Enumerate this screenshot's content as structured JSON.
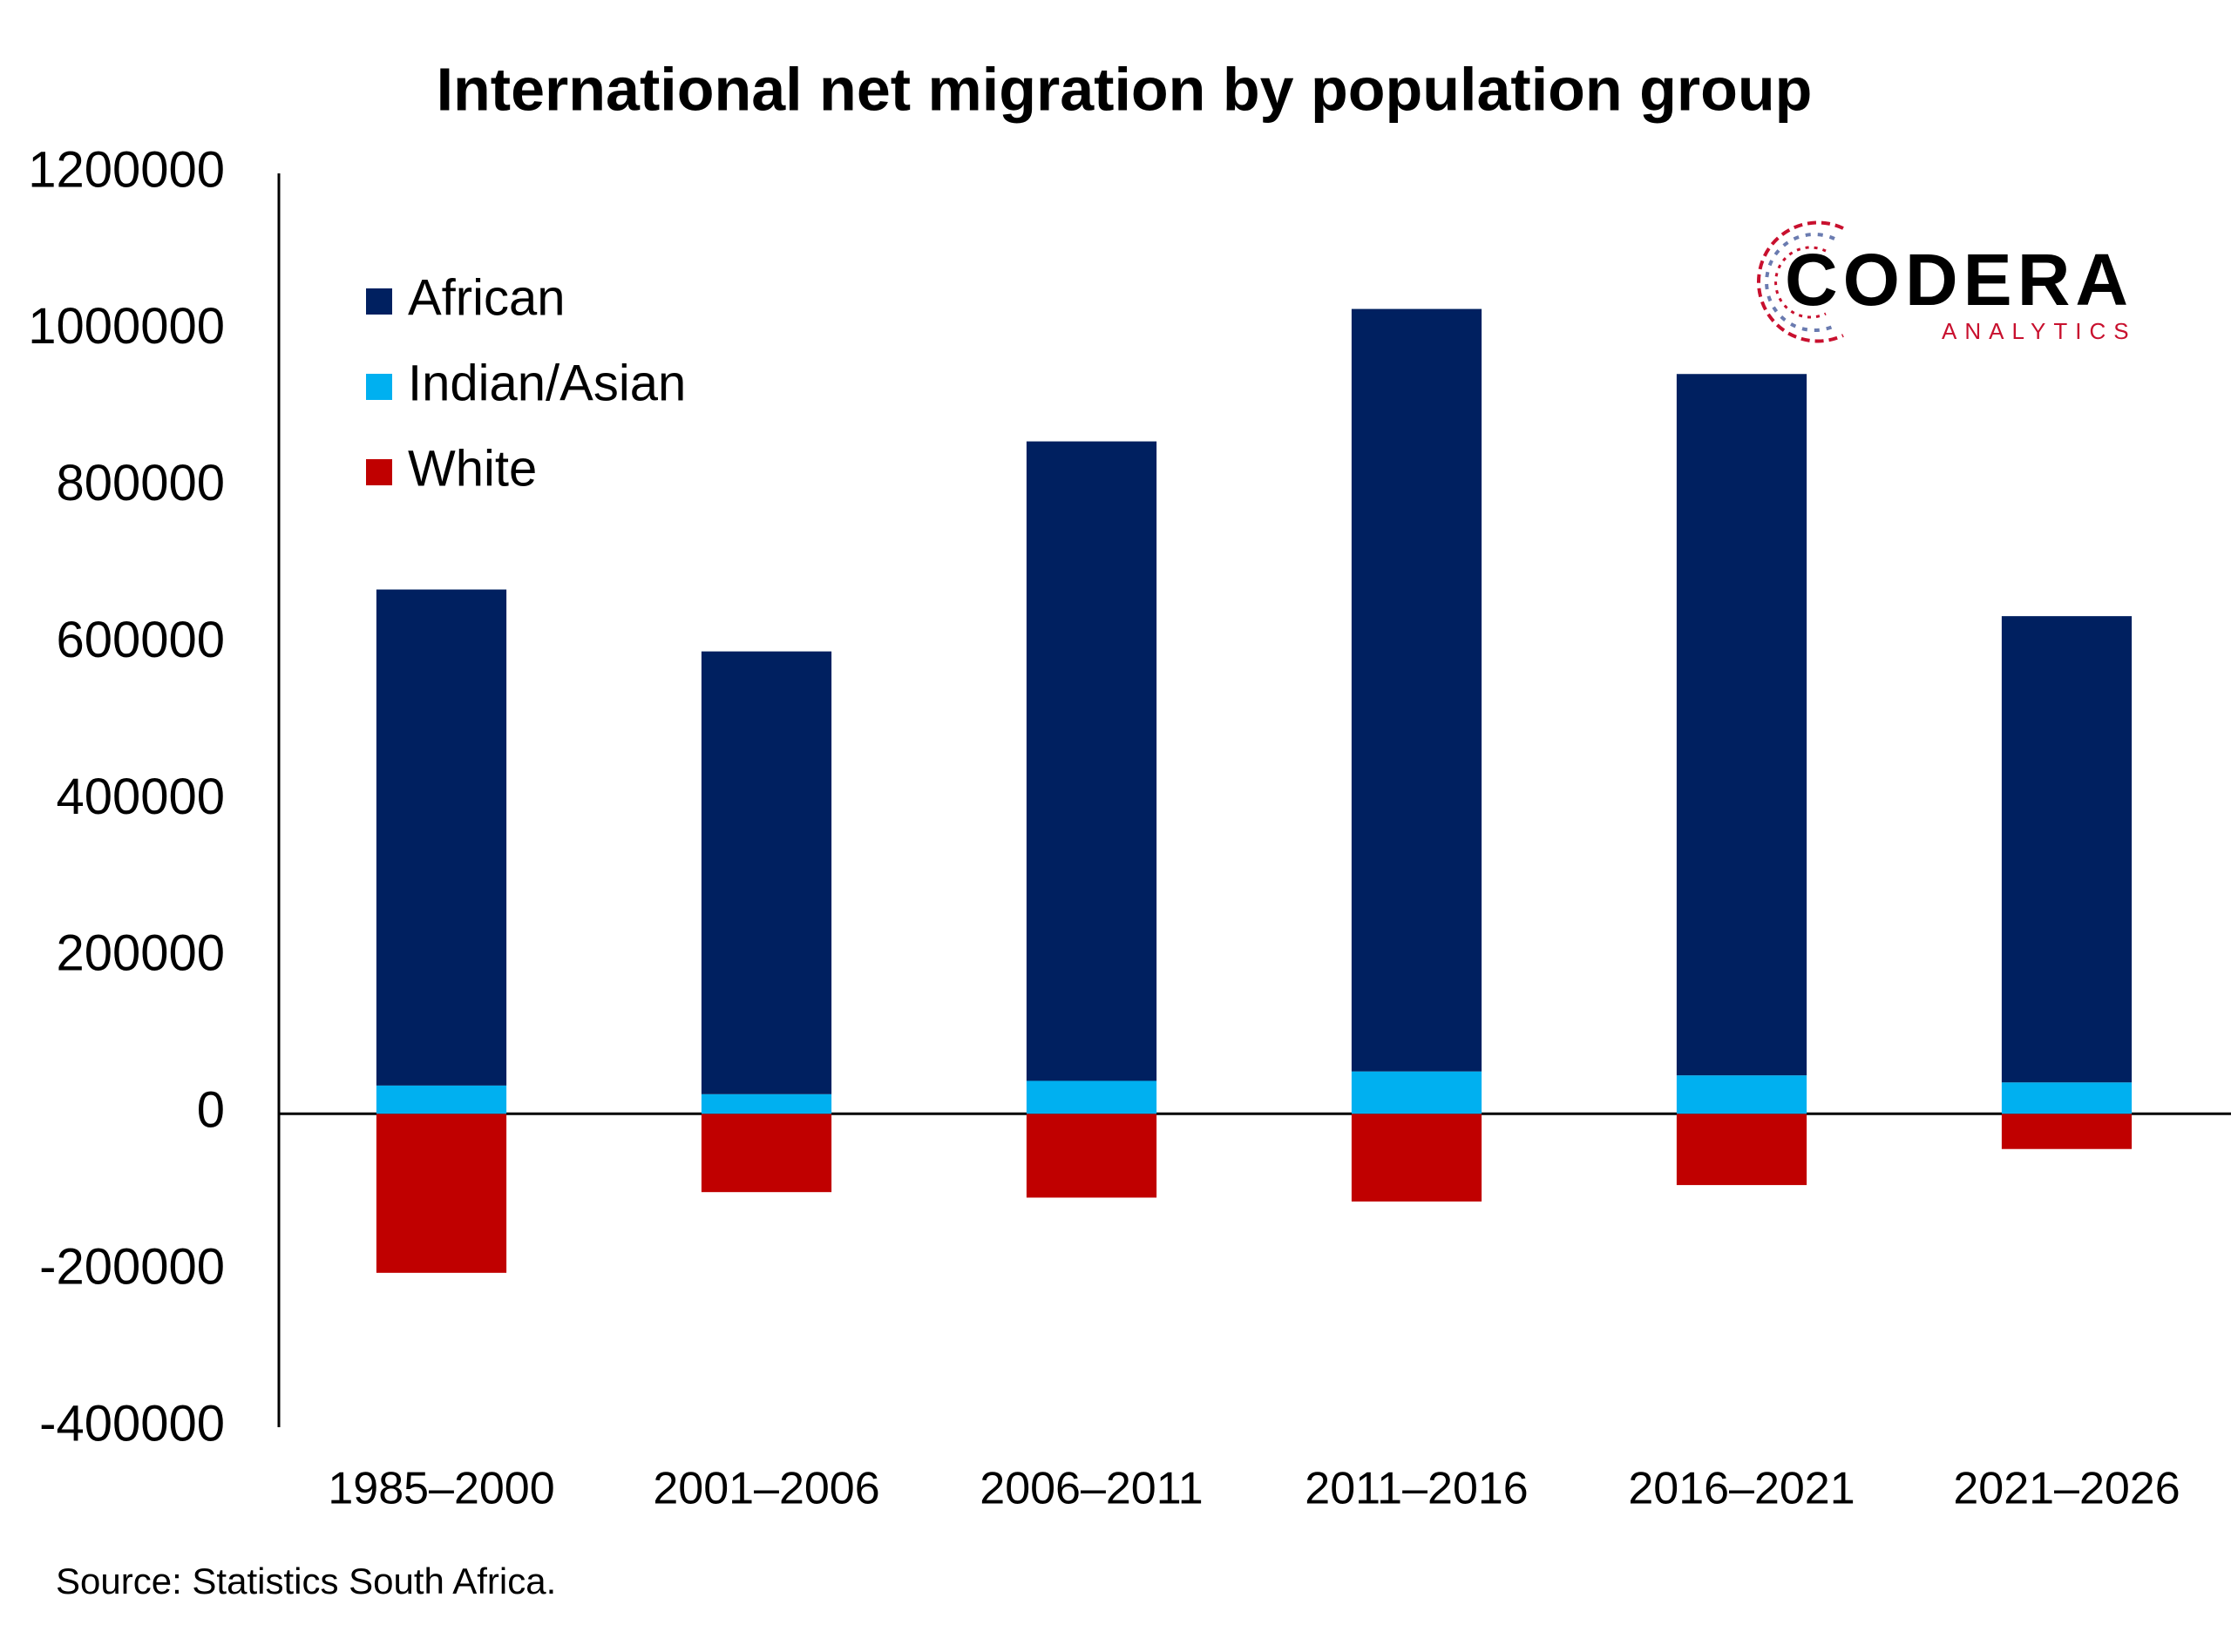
{
  "chart_data": {
    "type": "stacked_bar",
    "title": "International net migration by population group",
    "categories": [
      "1985–2000",
      "2001–2006",
      "2006–2011",
      "2011–2016",
      "2016–2021",
      "2021–2026"
    ],
    "series": [
      {
        "name": "African",
        "color": "#002060",
        "values": [
          633000,
          565000,
          816000,
          973000,
          895000,
          595000
        ]
      },
      {
        "name": "Indian/Asian",
        "color": "#00b0f0",
        "values": [
          36000,
          25000,
          42000,
          54000,
          49000,
          40000
        ]
      },
      {
        "name": "White",
        "color": "#c00000",
        "values": [
          -203000,
          -100000,
          -107000,
          -112000,
          -91000,
          -45000
        ]
      }
    ],
    "ylim": [
      -400000,
      1200000
    ],
    "yticks": [
      -400000,
      -200000,
      0,
      200000,
      400000,
      600000,
      800000,
      1000000,
      1200000
    ],
    "grid": false,
    "legend": "top-left",
    "source": "Source: Statistics South Africa."
  },
  "logo": {
    "name": "CODERA",
    "subtitle": "ANALYTICS"
  }
}
